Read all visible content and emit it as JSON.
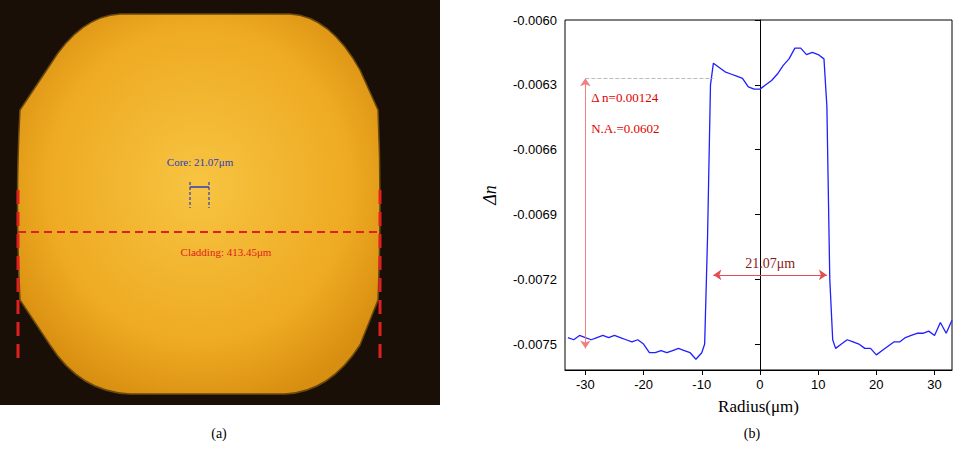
{
  "panel_labels": [
    "(a)",
    "(b)"
  ],
  "photo": {
    "core_label": "Core: 21.07μm",
    "cladding_label": "Cladding: 413.45μm"
  },
  "chart_data": {
    "type": "line",
    "x_label": "Radius(μm)",
    "y_label": "Δn",
    "color": "#1f1fff",
    "grid": false,
    "xlim": [
      -33.5,
      33
    ],
    "xticks": [
      -30,
      -20,
      -10,
      0,
      10,
      20,
      30
    ],
    "ylim": [
      -0.00762,
      -0.006
    ],
    "yticks": [
      {
        "value": -0.006,
        "label": "-0.0060"
      },
      -0.0063,
      -0.0066,
      -0.0069,
      -0.0072,
      -0.0075
    ],
    "x": [
      -33,
      -32,
      -31,
      -30,
      -29,
      -28,
      -27,
      -26,
      -25,
      -24,
      -23,
      -22,
      -21,
      -20,
      -19,
      -18,
      -17,
      -16,
      -15,
      -14,
      -13,
      -12,
      -11,
      -10,
      -9.5,
      -9,
      -8.5,
      -8,
      -7,
      -6,
      -5,
      -4,
      -3,
      -2,
      -1,
      0,
      1,
      2,
      3,
      4,
      5,
      6,
      7,
      8,
      9,
      10,
      11,
      11.5,
      12,
      12.5,
      13,
      14,
      15,
      16,
      17,
      18,
      19,
      20,
      21,
      22,
      23,
      24,
      25,
      26,
      27,
      28,
      29,
      30,
      31,
      32,
      33
    ],
    "values": [
      -0.00747,
      -0.00748,
      -0.00746,
      -0.00747,
      -0.00748,
      -0.00747,
      -0.00746,
      -0.00747,
      -0.00746,
      -0.00747,
      -0.00748,
      -0.00749,
      -0.00748,
      -0.0075,
      -0.00754,
      -0.00754,
      -0.00753,
      -0.00754,
      -0.00753,
      -0.00752,
      -0.00753,
      -0.00754,
      -0.00757,
      -0.00754,
      -0.0075,
      -0.007,
      -0.0063,
      -0.0062,
      -0.00622,
      -0.00624,
      -0.00625,
      -0.00626,
      -0.00627,
      -0.00631,
      -0.00632,
      -0.00632,
      -0.0063,
      -0.00628,
      -0.00625,
      -0.00621,
      -0.00618,
      -0.00613,
      -0.00613,
      -0.00616,
      -0.00615,
      -0.00616,
      -0.00618,
      -0.0064,
      -0.0072,
      -0.00748,
      -0.00752,
      -0.0075,
      -0.00748,
      -0.00749,
      -0.0075,
      -0.00752,
      -0.00752,
      -0.00755,
      -0.00753,
      -0.00751,
      -0.00749,
      -0.00749,
      -0.00747,
      -0.00746,
      -0.00745,
      -0.00745,
      -0.00744,
      -0.00746,
      -0.0074,
      -0.00745,
      -0.00739
    ],
    "annotations": [
      {
        "text": "Δ n=0.00124",
        "x": -29,
        "y": -0.00636,
        "color": "#e00000"
      },
      {
        "text": "N.A.=0.0602",
        "x": -29,
        "y": -0.0065,
        "color": "#e00000"
      }
    ],
    "arrows": [
      {
        "x": [
          -30,
          -30
        ],
        "y": [
          -0.00627,
          -0.00752
        ],
        "color": "#f08080"
      },
      {
        "x": [
          -8,
          11.5
        ],
        "y": [
          -0.00718,
          -0.00718
        ],
        "color": "#e05050",
        "text": "21.07μm",
        "text_color": "#8b1a1a"
      }
    ],
    "guide": {
      "x": [
        -30,
        -8
      ],
      "y": [
        -0.00627,
        -0.00627
      ],
      "color": "#bbbbbb"
    }
  }
}
